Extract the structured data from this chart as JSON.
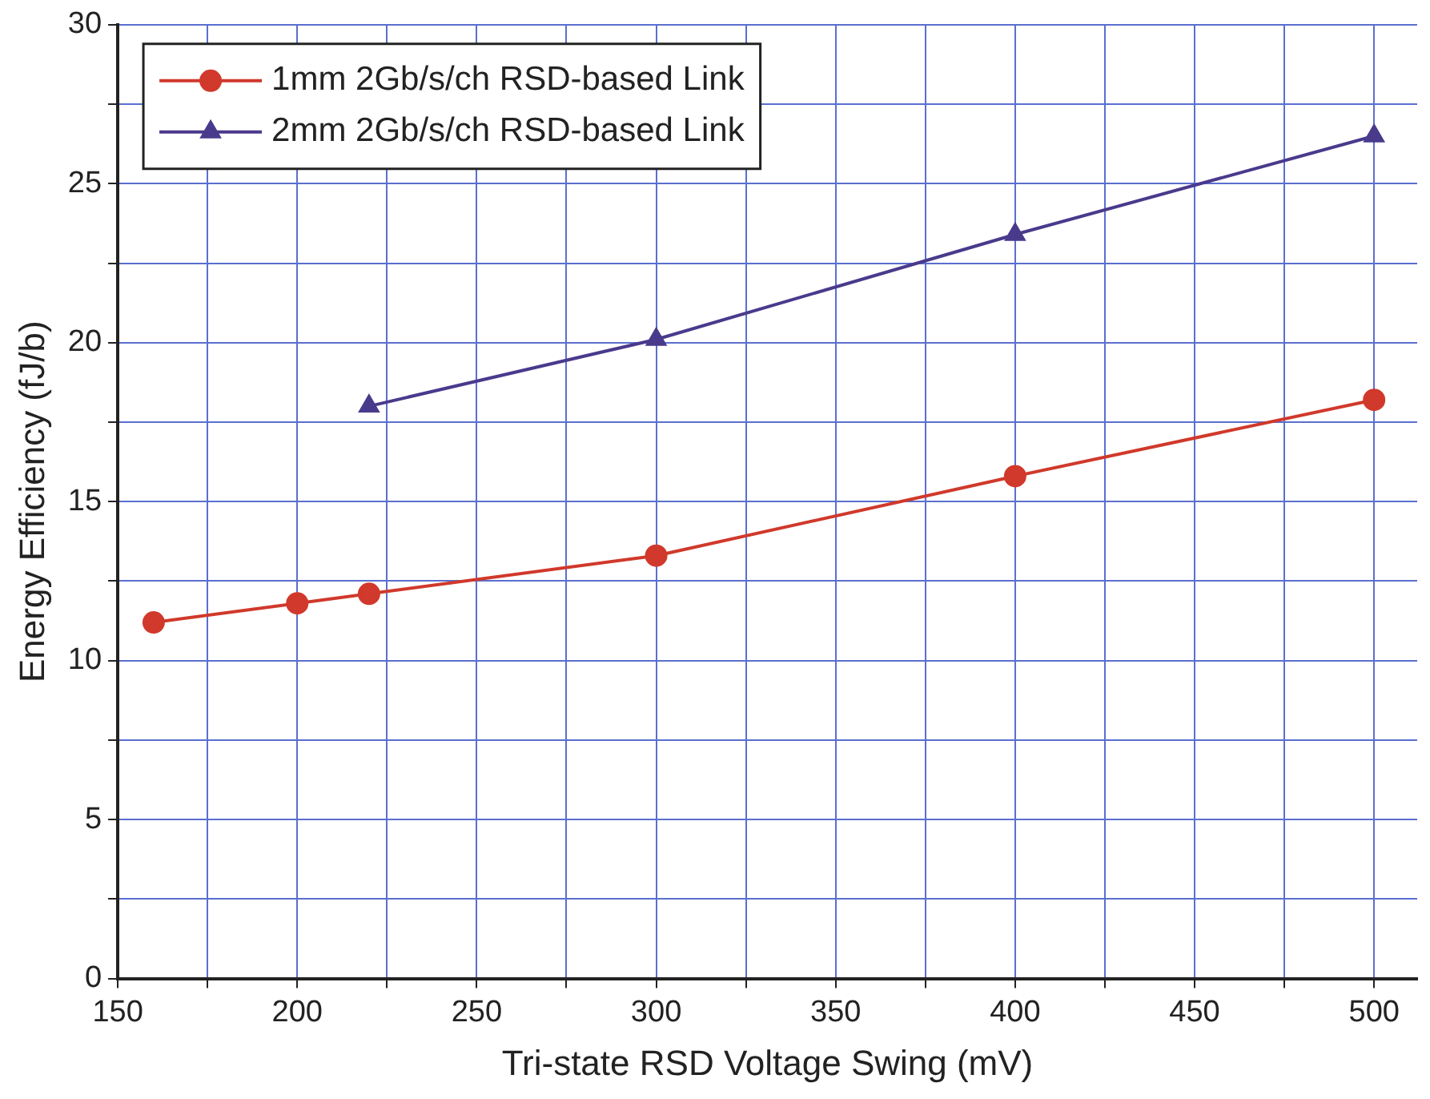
{
  "chart_data": {
    "type": "line",
    "xlabel": "Tri-state RSD Voltage Swing (mV)",
    "ylabel": "Energy Efficiency (fJ/b)",
    "series": [
      {
        "name": "1mm 2Gb/s/ch RSD-based Link",
        "color": "#d0392b",
        "marker": "circle",
        "x": [
          160,
          200,
          220,
          300,
          400,
          500
        ],
        "values": [
          11.2,
          11.8,
          12.1,
          13.3,
          15.8,
          18.2
        ]
      },
      {
        "name": "2mm 2Gb/s/ch RSD-based Link",
        "color": "#4a3a8c",
        "marker": "triangle",
        "x": [
          220,
          300,
          400,
          500
        ],
        "values": [
          18.0,
          20.1,
          23.4,
          26.5
        ]
      }
    ],
    "xlim": [
      150,
      512
    ],
    "xticks": [
      150,
      {
        "value": 175,
        "label": null
      },
      200,
      {
        "value": 225,
        "label": null
      },
      250,
      {
        "value": 275,
        "label": null
      },
      300,
      {
        "value": 325,
        "label": null
      },
      350,
      {
        "value": 375,
        "label": null
      },
      400,
      {
        "value": 425,
        "label": null
      },
      450,
      {
        "value": 475,
        "label": null
      },
      500
    ],
    "ylim": [
      0,
      30
    ],
    "yticks": [
      0,
      {
        "value": 2.5,
        "label": null
      },
      5,
      {
        "value": 7.5,
        "label": null
      },
      10,
      {
        "value": 12.5,
        "label": null
      },
      15,
      {
        "value": 17.5,
        "label": null
      },
      20,
      {
        "value": 22.5,
        "label": null
      },
      25,
      {
        "value": 27.5,
        "label": null
      },
      30
    ],
    "grid": true,
    "legend": "top left",
    "line_style": "solid"
  }
}
